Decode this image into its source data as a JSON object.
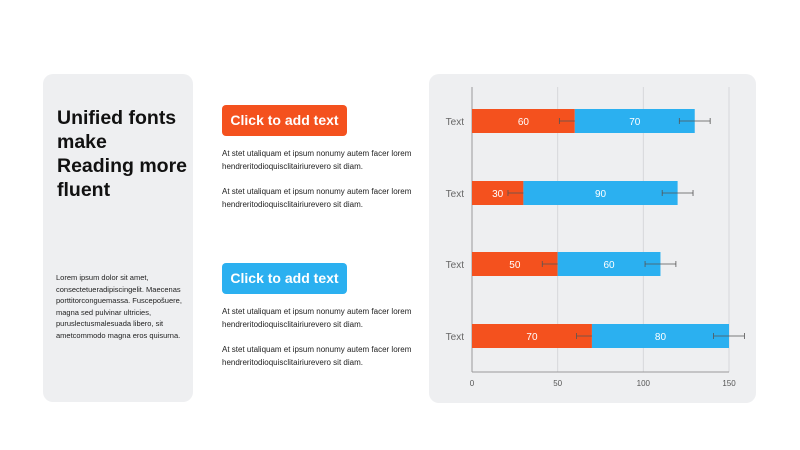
{
  "left_panel": {
    "headline": "Unified fonts make Reading more fluent",
    "body": "Lorem ipsum dolor sit amet, consectetueradipiscingelit. Maecenas porttitorconguemassa. Fuscepošuere, magna sed pulvinar ultricies, puruslectusmalesuada libero, sit ametcommodo magna eros quisurna."
  },
  "section1": {
    "button_label": "Click to add text",
    "para1": "At stet utaliquam  et ipsum nonumy  autem facer lorem hendreritodioquisclitairiurevero  sit diam.",
    "para2": "At stet utaliquam  et ipsum nonumy  autem facer lorem hendreritodioquisclitairiurevero  sit diam."
  },
  "section2": {
    "button_label": "Click to add text",
    "para1": "At stet utaliquam  et ipsum nonumy  autem facer lorem hendreritodioquisclitairiurevero  sit diam.",
    "para2": "At stet utaliquam  et ipsum nonumy  autem facer lorem hendreritodioquisclitairiurevero  sit diam."
  },
  "colors": {
    "orange": "#f4511e",
    "blue": "#2bb0f0",
    "card": "#eeeff1"
  },
  "chart_data": {
    "type": "bar",
    "orientation": "horizontal",
    "stacked": true,
    "categories": [
      "Text",
      "Text",
      "Text",
      "Text"
    ],
    "series": [
      {
        "values": [
          60,
          30,
          50,
          70
        ],
        "error": [
          9,
          9,
          9,
          9
        ]
      },
      {
        "values": [
          70,
          90,
          60,
          80
        ],
        "error": [
          9,
          9,
          9,
          9
        ]
      }
    ],
    "xlim": [
      0,
      150
    ],
    "xticks": [
      0,
      50,
      100,
      150
    ],
    "grid": "vertical",
    "data_labels": true
  }
}
